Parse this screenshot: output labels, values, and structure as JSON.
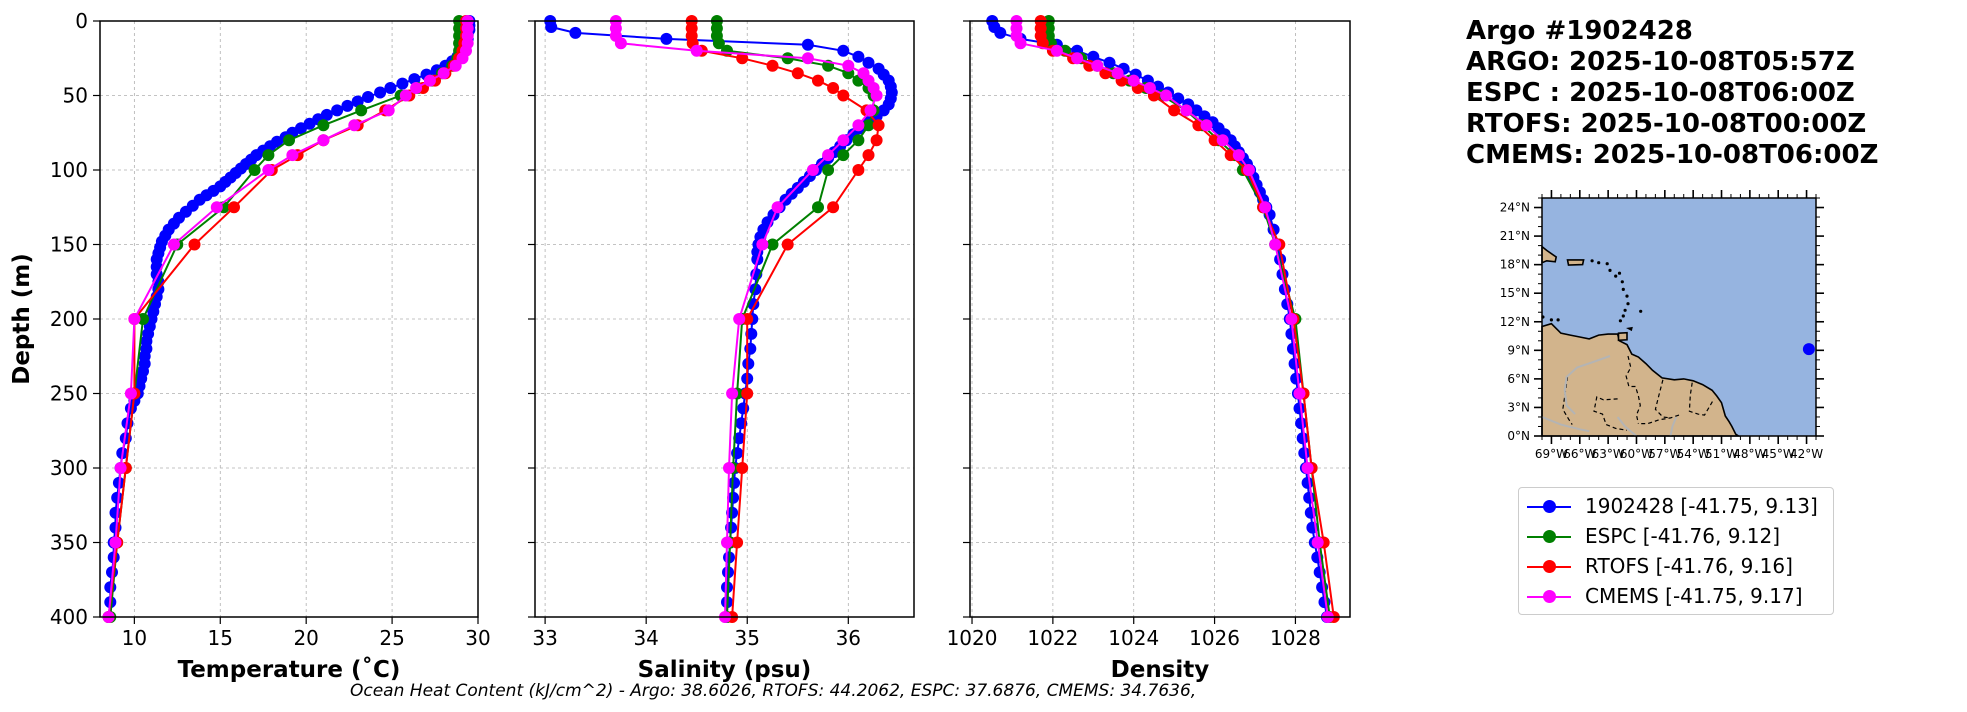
{
  "header": {
    "title": "Argo #1902428",
    "argo_time": "ARGO: 2025-10-08T05:57Z",
    "espc_time": "ESPC : 2025-10-08T06:00Z",
    "rtofs_time": "RTOFS: 2025-10-08T00:00Z",
    "cmems_time": "CMEMS: 2025-10-08T06:00Z"
  },
  "footer_text": "Ocean Heat Content (kJ/cm^2) - Argo: 38.6026,  RTOFS: 44.2062,  ESPC: 37.6876,  CMEMS: 34.7636,",
  "colors": {
    "argo": "#0000ff",
    "espc": "#008000",
    "rtofs": "#ff0000",
    "cmems": "#ff00ff",
    "ocean": "#96b4e0",
    "land": "#d2b48c"
  },
  "legend": [
    {
      "label": "1902428 [-41.75, 9.13]",
      "color": "#0000ff"
    },
    {
      "label": "ESPC [-41.76, 9.12]",
      "color": "#008000"
    },
    {
      "label": "RTOFS [-41.76, 9.16]",
      "color": "#ff0000"
    },
    {
      "label": "CMEMS [-41.75, 9.17]",
      "color": "#ff00ff"
    }
  ],
  "map": {
    "lat_labels": [
      "0°N",
      "3°N",
      "6°N",
      "9°N",
      "12°N",
      "15°N",
      "18°N",
      "21°N",
      "24°N"
    ],
    "lon_labels": [
      "69°W",
      "66°W",
      "63°W",
      "60°W",
      "57°W",
      "54°W",
      "51°W",
      "48°W",
      "45°W",
      "42°W"
    ],
    "lon_range": [
      -70,
      -41
    ],
    "lat_range": [
      0,
      25
    ],
    "float_position": [
      -41.75,
      9.13
    ]
  },
  "chart_data": [
    {
      "type": "line",
      "title": "",
      "xlabel": "Temperature (˚C)",
      "ylabel": "Depth (m)",
      "xlim": [
        8,
        30
      ],
      "ylim": [
        400,
        0
      ],
      "xticks": [
        10,
        15,
        20,
        25,
        30
      ],
      "yticks": [
        0,
        50,
        100,
        150,
        200,
        250,
        300,
        350,
        400
      ],
      "grid": true,
      "series": [
        {
          "name": "1902428",
          "depth": [
            0,
            3,
            6,
            9,
            12,
            15,
            18,
            21,
            24,
            27,
            30,
            33,
            36,
            39,
            42,
            45,
            48,
            51,
            54,
            57,
            60,
            63,
            66,
            69,
            72,
            75,
            78,
            81,
            84,
            87,
            90,
            93,
            96,
            99,
            102,
            105,
            108,
            111,
            114,
            117,
            120,
            124,
            128,
            132,
            136,
            140,
            144,
            148,
            152,
            156,
            160,
            165,
            170,
            175,
            180,
            185,
            190,
            195,
            200,
            205,
            210,
            215,
            220,
            225,
            230,
            235,
            240,
            245,
            250,
            255,
            260,
            270,
            280,
            290,
            300,
            310,
            320,
            330,
            340,
            350,
            360,
            370,
            380,
            390,
            400
          ],
          "values": [
            29.5,
            29.5,
            29.5,
            29.4,
            29.4,
            29.3,
            29.2,
            29.0,
            28.8,
            28.5,
            28.1,
            27.6,
            27.0,
            26.3,
            25.6,
            24.9,
            24.3,
            23.6,
            23.0,
            22.4,
            21.8,
            21.2,
            20.7,
            20.2,
            19.7,
            19.2,
            18.8,
            18.3,
            17.9,
            17.5,
            17.1,
            16.8,
            16.5,
            16.2,
            15.9,
            15.6,
            15.3,
            15.0,
            14.6,
            14.2,
            13.8,
            13.4,
            13.0,
            12.6,
            12.3,
            12.0,
            11.8,
            11.6,
            11.5,
            11.4,
            11.3,
            11.3,
            11.3,
            11.4,
            11.4,
            11.3,
            11.2,
            11.1,
            11.0,
            10.9,
            10.8,
            10.7,
            10.7,
            10.6,
            10.6,
            10.5,
            10.4,
            10.3,
            10.2,
            10.0,
            9.8,
            9.6,
            9.5,
            9.3,
            9.2,
            9.1,
            9.0,
            8.9,
            8.9,
            8.8,
            8.8,
            8.7,
            8.6,
            8.6,
            8.5
          ]
        },
        {
          "name": "ESPC",
          "depth": [
            0,
            5,
            10,
            15,
            20,
            25,
            30,
            35,
            40,
            45,
            50,
            60,
            70,
            80,
            90,
            100,
            125,
            150,
            200,
            250,
            300,
            350,
            400
          ],
          "values": [
            28.9,
            28.9,
            28.9,
            28.9,
            28.9,
            28.8,
            28.5,
            27.9,
            27.3,
            26.5,
            25.5,
            23.2,
            21.0,
            19.0,
            17.8,
            17.0,
            15.2,
            12.5,
            10.5,
            10.0,
            9.5,
            9.0,
            8.6
          ]
        },
        {
          "name": "RTOFS",
          "depth": [
            0,
            5,
            10,
            15,
            20,
            25,
            30,
            35,
            40,
            45,
            50,
            60,
            70,
            80,
            90,
            100,
            125,
            150,
            200,
            250,
            300,
            350,
            400
          ],
          "values": [
            29.3,
            29.3,
            29.3,
            29.2,
            29.1,
            28.9,
            28.6,
            28.1,
            27.5,
            26.8,
            26.0,
            24.6,
            23.0,
            21.0,
            19.5,
            18.0,
            15.8,
            13.5,
            10.0,
            10.0,
            9.5,
            9.0,
            8.5
          ]
        },
        {
          "name": "CMEMS",
          "depth": [
            0,
            5,
            10,
            15,
            20,
            25,
            30,
            35,
            40,
            45,
            50,
            60,
            70,
            80,
            90,
            100,
            125,
            150,
            200,
            250,
            300,
            350,
            400
          ],
          "values": [
            29.4,
            29.4,
            29.4,
            29.4,
            29.3,
            29.1,
            28.7,
            28.0,
            27.2,
            26.4,
            25.8,
            24.8,
            22.8,
            21.0,
            19.2,
            17.8,
            14.8,
            12.3,
            10.0,
            9.8,
            9.2,
            8.9,
            8.5
          ]
        }
      ]
    },
    {
      "type": "line",
      "title": "",
      "xlabel": "Salinity (psu)",
      "ylabel": "",
      "xlim": [
        32.9,
        36.65
      ],
      "ylim": [
        400,
        0
      ],
      "xticks": [
        33,
        34,
        35,
        36
      ],
      "yticks": [
        0,
        50,
        100,
        150,
        200,
        250,
        300,
        350,
        400
      ],
      "grid": true,
      "series": [
        {
          "name": "1902428",
          "depth": [
            0,
            4,
            8,
            12,
            16,
            20,
            24,
            28,
            32,
            36,
            40,
            44,
            48,
            52,
            56,
            60,
            64,
            68,
            72,
            76,
            80,
            84,
            88,
            92,
            96,
            100,
            104,
            108,
            112,
            116,
            120,
            125,
            130,
            135,
            140,
            145,
            150,
            155,
            160,
            170,
            180,
            190,
            200,
            210,
            220,
            230,
            240,
            250,
            260,
            270,
            280,
            290,
            300,
            310,
            320,
            330,
            340,
            350,
            360,
            370,
            380,
            390,
            400
          ],
          "values": [
            33.05,
            33.06,
            33.3,
            34.2,
            35.6,
            35.95,
            36.1,
            36.2,
            36.3,
            36.35,
            36.4,
            36.42,
            36.43,
            36.42,
            36.4,
            36.35,
            36.28,
            36.2,
            36.12,
            36.05,
            35.98,
            35.92,
            35.86,
            35.8,
            35.74,
            35.68,
            35.62,
            35.56,
            35.5,
            35.44,
            35.38,
            35.32,
            35.26,
            35.2,
            35.16,
            35.13,
            35.11,
            35.1,
            35.1,
            35.09,
            35.08,
            35.06,
            35.05,
            35.04,
            35.03,
            35.01,
            35.0,
            34.98,
            34.96,
            34.94,
            34.92,
            34.9,
            34.88,
            34.87,
            34.86,
            34.85,
            34.84,
            34.83,
            34.82,
            34.81,
            34.8,
            34.8,
            34.79
          ]
        },
        {
          "name": "ESPC",
          "depth": [
            0,
            5,
            10,
            15,
            20,
            25,
            30,
            35,
            40,
            45,
            50,
            60,
            70,
            80,
            90,
            100,
            125,
            150,
            200,
            250,
            300,
            350,
            400
          ],
          "values": [
            34.7,
            34.7,
            34.7,
            34.72,
            34.8,
            35.4,
            35.8,
            36.0,
            36.1,
            36.2,
            36.25,
            36.25,
            36.2,
            36.1,
            35.95,
            35.8,
            35.7,
            35.25,
            34.95,
            34.9,
            34.86,
            34.83,
            34.8
          ]
        },
        {
          "name": "RTOFS",
          "depth": [
            0,
            5,
            10,
            15,
            20,
            25,
            30,
            35,
            40,
            45,
            50,
            60,
            70,
            80,
            90,
            100,
            125,
            150,
            200,
            250,
            300,
            350,
            400
          ],
          "values": [
            34.45,
            34.45,
            34.45,
            34.46,
            34.55,
            34.95,
            35.25,
            35.5,
            35.7,
            35.85,
            35.95,
            36.18,
            36.3,
            36.28,
            36.2,
            36.1,
            35.85,
            35.4,
            35.0,
            35.0,
            34.95,
            34.9,
            34.85
          ]
        },
        {
          "name": "CMEMS",
          "depth": [
            0,
            5,
            10,
            15,
            20,
            25,
            30,
            35,
            40,
            45,
            50,
            60,
            70,
            80,
            90,
            100,
            125,
            150,
            200,
            250,
            300,
            350,
            400
          ],
          "values": [
            33.7,
            33.7,
            33.7,
            33.75,
            34.5,
            35.6,
            36.0,
            36.15,
            36.2,
            36.25,
            36.28,
            36.22,
            36.1,
            35.95,
            35.8,
            35.65,
            35.3,
            35.15,
            34.92,
            34.85,
            34.82,
            34.8,
            34.78
          ]
        }
      ]
    },
    {
      "type": "line",
      "title": "",
      "xlabel": "Density",
      "ylabel": "",
      "xlim": [
        1019.95,
        1029.35
      ],
      "ylim": [
        400,
        0
      ],
      "xticks": [
        1020,
        1022,
        1024,
        1026,
        1028
      ],
      "yticks": [
        0,
        50,
        100,
        150,
        200,
        250,
        300,
        350,
        400
      ],
      "grid": true,
      "series": [
        {
          "name": "1902428",
          "depth": [
            0,
            4,
            8,
            12,
            16,
            20,
            24,
            28,
            32,
            36,
            40,
            44,
            48,
            52,
            56,
            60,
            64,
            68,
            72,
            76,
            80,
            84,
            88,
            92,
            96,
            100,
            105,
            110,
            115,
            120,
            125,
            130,
            140,
            150,
            160,
            170,
            180,
            190,
            200,
            210,
            220,
            230,
            240,
            250,
            260,
            270,
            280,
            290,
            300,
            310,
            320,
            330,
            340,
            350,
            360,
            370,
            380,
            390,
            400
          ],
          "values": [
            1020.5,
            1020.55,
            1020.7,
            1021.2,
            1022.1,
            1022.6,
            1023.0,
            1023.4,
            1023.75,
            1024.05,
            1024.35,
            1024.6,
            1024.85,
            1025.1,
            1025.35,
            1025.55,
            1025.75,
            1025.95,
            1026.1,
            1026.25,
            1026.4,
            1026.5,
            1026.6,
            1026.7,
            1026.8,
            1026.88,
            1026.96,
            1027.04,
            1027.12,
            1027.2,
            1027.28,
            1027.36,
            1027.46,
            1027.56,
            1027.62,
            1027.68,
            1027.74,
            1027.8,
            1027.86,
            1027.9,
            1027.94,
            1027.98,
            1028.02,
            1028.06,
            1028.1,
            1028.14,
            1028.18,
            1028.22,
            1028.26,
            1028.3,
            1028.34,
            1028.38,
            1028.42,
            1028.48,
            1028.54,
            1028.6,
            1028.66,
            1028.72,
            1028.78
          ]
        },
        {
          "name": "ESPC",
          "depth": [
            0,
            5,
            10,
            15,
            20,
            25,
            30,
            35,
            40,
            45,
            50,
            60,
            70,
            80,
            90,
            100,
            125,
            150,
            200,
            250,
            300,
            350,
            400
          ],
          "values": [
            1021.9,
            1021.9,
            1021.9,
            1021.95,
            1022.3,
            1022.7,
            1023.1,
            1023.5,
            1023.9,
            1024.3,
            1024.7,
            1025.3,
            1025.7,
            1026.1,
            1026.5,
            1026.7,
            1027.2,
            1027.5,
            1028.0,
            1028.2,
            1028.4,
            1028.6,
            1028.85
          ]
        },
        {
          "name": "RTOFS",
          "depth": [
            0,
            5,
            10,
            15,
            20,
            25,
            30,
            35,
            40,
            45,
            50,
            60,
            70,
            80,
            90,
            100,
            125,
            150,
            200,
            250,
            300,
            350,
            400
          ],
          "values": [
            1021.7,
            1021.7,
            1021.7,
            1021.75,
            1022.0,
            1022.5,
            1022.9,
            1023.3,
            1023.7,
            1024.1,
            1024.5,
            1025.0,
            1025.6,
            1026.0,
            1026.4,
            1026.8,
            1027.2,
            1027.6,
            1027.95,
            1028.2,
            1028.4,
            1028.7,
            1028.95
          ]
        },
        {
          "name": "CMEMS",
          "depth": [
            0,
            5,
            10,
            15,
            20,
            25,
            30,
            35,
            40,
            45,
            50,
            60,
            70,
            80,
            90,
            100,
            125,
            150,
            200,
            250,
            300,
            350,
            400
          ],
          "values": [
            1021.1,
            1021.1,
            1021.1,
            1021.2,
            1022.1,
            1022.6,
            1023.1,
            1023.6,
            1024.0,
            1024.4,
            1024.8,
            1025.3,
            1025.8,
            1026.2,
            1026.6,
            1026.85,
            1027.25,
            1027.5,
            1027.9,
            1028.1,
            1028.3,
            1028.55,
            1028.8
          ]
        }
      ]
    }
  ]
}
